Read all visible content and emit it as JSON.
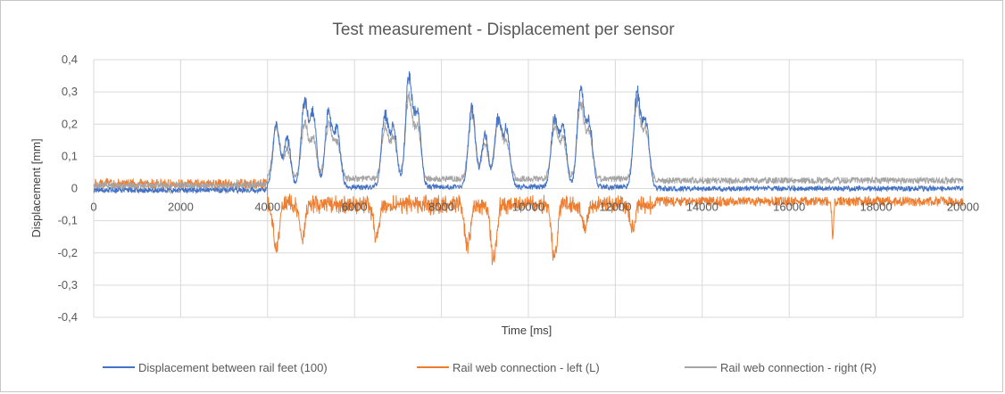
{
  "chart_data": {
    "type": "line",
    "title": "Test measurement - Displacement per sensor",
    "xlabel": "Time [ms]",
    "ylabel": "Displacement [mm]",
    "xlim": [
      0,
      20000
    ],
    "ylim": [
      -0.4,
      0.4
    ],
    "x_ticks": [
      "0",
      "2000",
      "4000",
      "6000",
      "8000",
      "10000",
      "12000",
      "14000",
      "16000",
      "18000",
      "20000"
    ],
    "y_ticks": [
      "0,4",
      "0,3",
      "0,2",
      "0,1",
      "0",
      "-0,1",
      "-0,2",
      "-0,3",
      "-0,4"
    ],
    "grid": true,
    "legend_position": "bottom",
    "series": [
      {
        "name": "Displacement between rail feet (100)",
        "color": "#4472c4",
        "baseline_before": -0.005,
        "baseline_after": 0.0,
        "noise": 0.008,
        "active_range": [
          4000,
          12900
        ],
        "peaks": [
          [
            4200,
            0.21
          ],
          [
            4450,
            0.17
          ],
          [
            4850,
            0.29
          ],
          [
            5050,
            0.24
          ],
          [
            5400,
            0.25
          ],
          [
            5600,
            0.19
          ],
          [
            6700,
            0.24
          ],
          [
            6900,
            0.2
          ],
          [
            7250,
            0.37
          ],
          [
            7450,
            0.25
          ],
          [
            8700,
            0.27
          ],
          [
            9000,
            0.18
          ],
          [
            9300,
            0.23
          ],
          [
            9500,
            0.19
          ],
          [
            10600,
            0.23
          ],
          [
            10800,
            0.2
          ],
          [
            11200,
            0.32
          ],
          [
            11400,
            0.22
          ],
          [
            12500,
            0.31
          ],
          [
            12700,
            0.23
          ]
        ]
      },
      {
        "name": "Rail web connection - left (L)",
        "color": "#ed7d31",
        "baseline_before": 0.015,
        "baseline_after": -0.04,
        "noise": 0.015,
        "active_range": [
          4000,
          12900
        ],
        "dips": [
          [
            4200,
            -0.2
          ],
          [
            4800,
            -0.16
          ],
          [
            6500,
            -0.16
          ],
          [
            8600,
            -0.19
          ],
          [
            9200,
            -0.24
          ],
          [
            10600,
            -0.24
          ],
          [
            11300,
            -0.13
          ],
          [
            12400,
            -0.14
          ],
          [
            17000,
            -0.17
          ]
        ]
      },
      {
        "name": "Rail web connection - right (R)",
        "color": "#a5a5a5",
        "baseline_before": 0.01,
        "baseline_after": 0.025,
        "noise": 0.01,
        "active_range": [
          4000,
          12900
        ],
        "peaks": [
          [
            4200,
            0.21
          ],
          [
            4450,
            0.13
          ],
          [
            4850,
            0.21
          ],
          [
            5050,
            0.16
          ],
          [
            5400,
            0.21
          ],
          [
            5600,
            0.15
          ],
          [
            6700,
            0.2
          ],
          [
            6900,
            0.16
          ],
          [
            7250,
            0.3
          ],
          [
            7450,
            0.2
          ],
          [
            8700,
            0.25
          ],
          [
            9000,
            0.14
          ],
          [
            9300,
            0.23
          ],
          [
            9500,
            0.15
          ],
          [
            10600,
            0.2
          ],
          [
            10800,
            0.16
          ],
          [
            11200,
            0.28
          ],
          [
            11400,
            0.18
          ],
          [
            12500,
            0.28
          ],
          [
            12700,
            0.19
          ]
        ]
      }
    ]
  }
}
